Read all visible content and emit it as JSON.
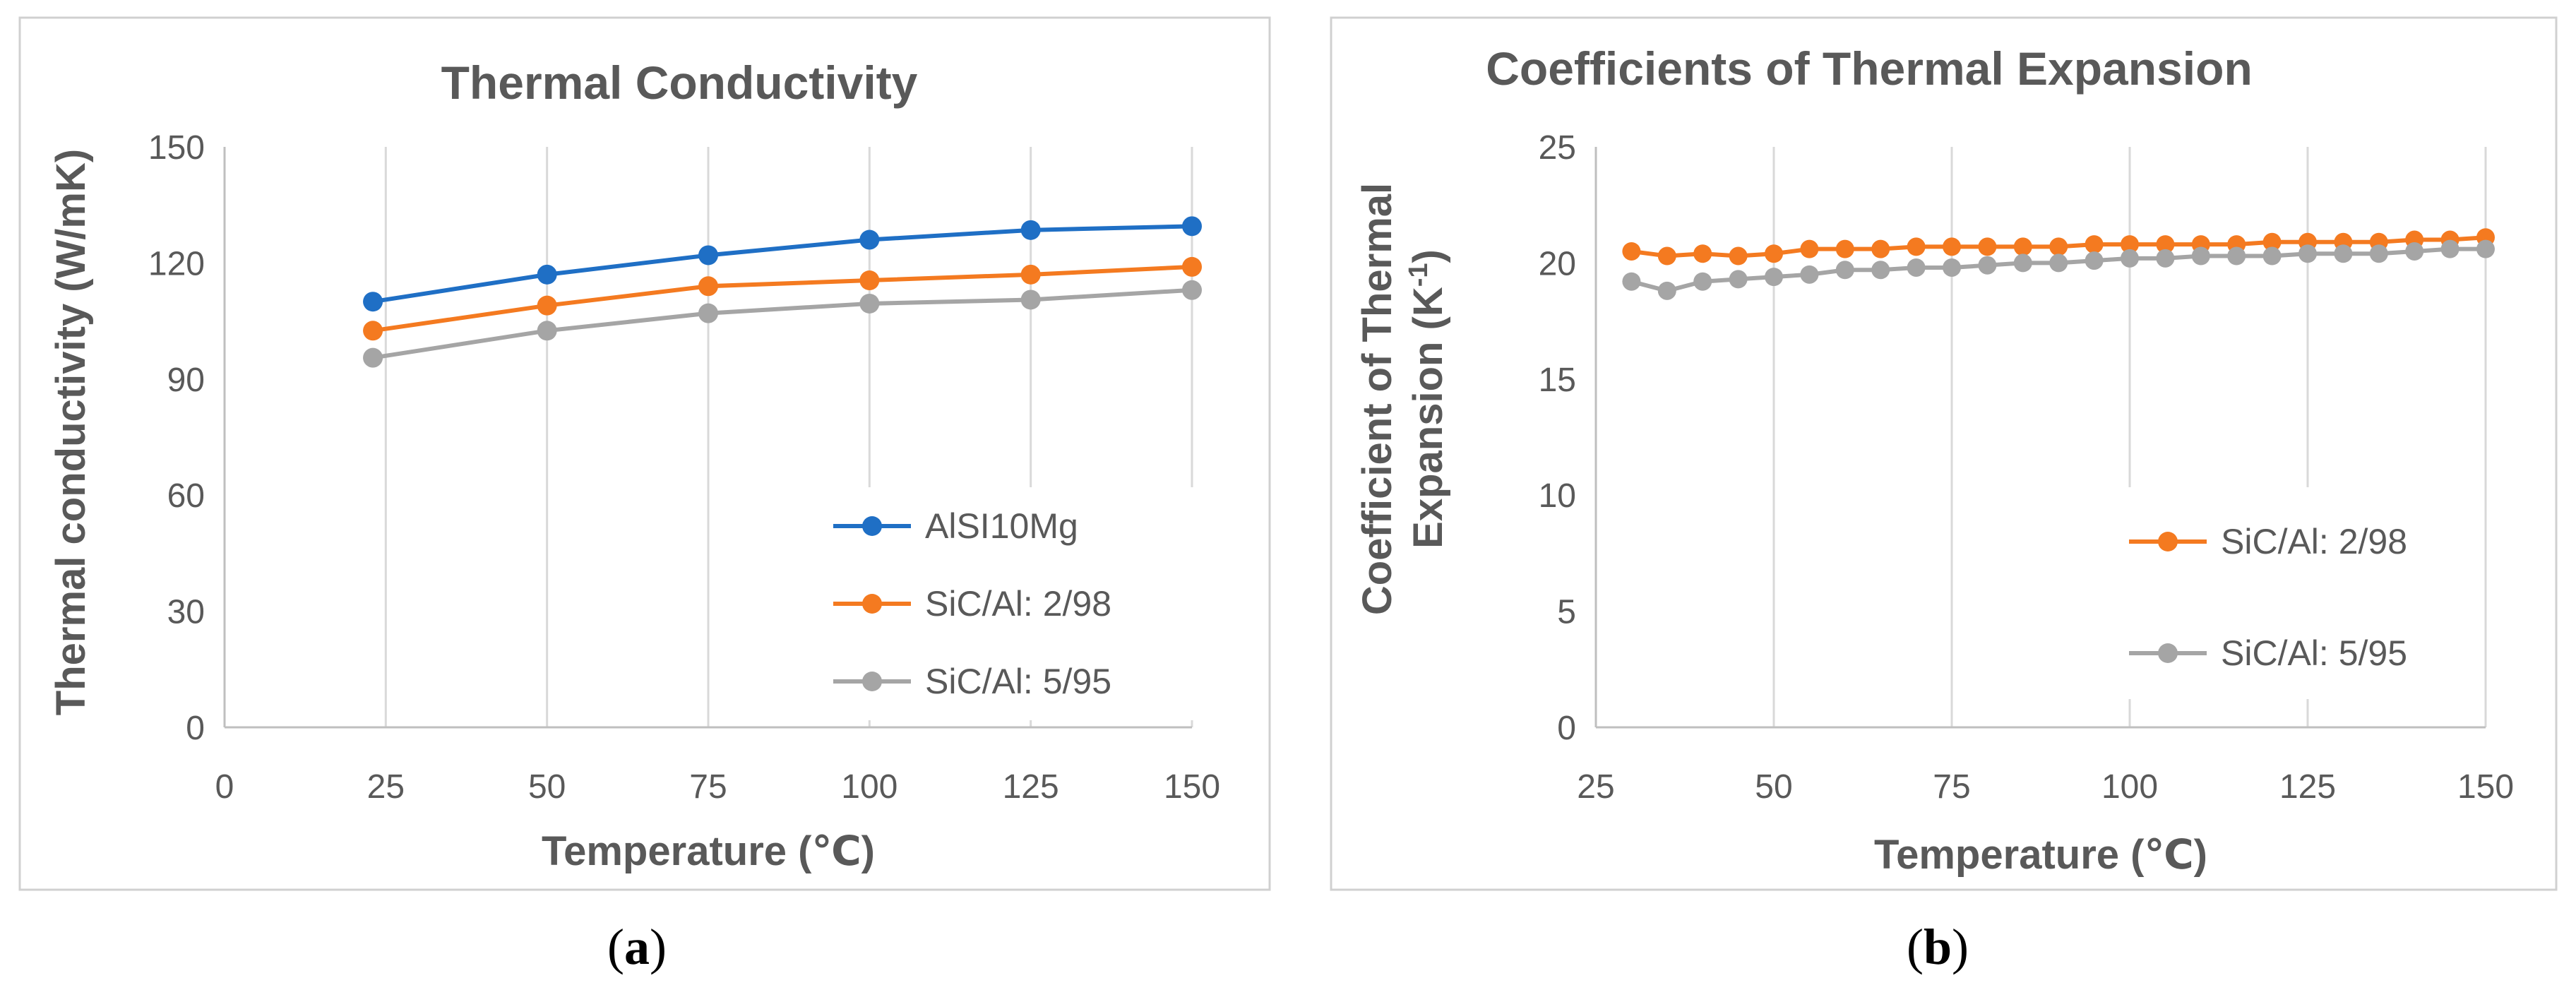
{
  "captions": {
    "a": "a",
    "b": "b"
  },
  "chart_data": [
    {
      "type": "line",
      "title": "Thermal Conductivity",
      "xlabel": "Temperature (℃)",
      "ylabel": "Thermal conductivity (W/mK)",
      "xlim": [
        0,
        150
      ],
      "ylim": [
        0,
        150
      ],
      "xticks": [
        0,
        25,
        50,
        75,
        100,
        125,
        150
      ],
      "yticks": [
        0,
        30,
        60,
        90,
        120,
        150
      ],
      "grid": "vertical",
      "legend": "bottom-right",
      "series": [
        {
          "name": "AlSI10Mg",
          "color": "#1f6fc5",
          "x": [
            23,
            50,
            75,
            100,
            125,
            150
          ],
          "y": [
            110,
            117,
            122,
            126,
            128.5,
            129.5
          ]
        },
        {
          "name": "SiC/Al: 2/98",
          "color": "#f47a20",
          "x": [
            23,
            50,
            75,
            100,
            125,
            150
          ],
          "y": [
            102.5,
            109,
            114,
            115.5,
            117,
            119
          ]
        },
        {
          "name": "SiC/Al: 5/95",
          "color": "#a5a5a5",
          "x": [
            23,
            50,
            75,
            100,
            125,
            150
          ],
          "y": [
            95.5,
            102.5,
            107,
            109.5,
            110.5,
            113
          ]
        }
      ]
    },
    {
      "type": "line",
      "title": "Coefficients of Thermal Expansion",
      "xlabel": "Temperature (℃)",
      "ylabel_lines": [
        "Coefficient of Thermal",
        "Expansion (K"
      ],
      "ylabel_sup": "-1",
      "ylabel_tail": ")",
      "xlim": [
        25,
        150
      ],
      "ylim": [
        0,
        25
      ],
      "xticks": [
        25,
        50,
        75,
        100,
        125,
        150
      ],
      "yticks": [
        0,
        5,
        10,
        15,
        20,
        25
      ],
      "grid": "vertical",
      "legend": "right",
      "series": [
        {
          "name": "SiC/Al: 2/98",
          "color": "#f47a20",
          "x": [
            30,
            35,
            40,
            45,
            50,
            55,
            60,
            65,
            70,
            75,
            80,
            85,
            90,
            95,
            100,
            105,
            110,
            115,
            120,
            125,
            130,
            135,
            140,
            145,
            150
          ],
          "y": [
            20.5,
            20.3,
            20.4,
            20.3,
            20.4,
            20.6,
            20.6,
            20.6,
            20.7,
            20.7,
            20.7,
            20.7,
            20.7,
            20.8,
            20.8,
            20.8,
            20.8,
            20.8,
            20.9,
            20.9,
            20.9,
            20.9,
            21.0,
            21.0,
            21.1
          ]
        },
        {
          "name": "SiC/Al: 5/95",
          "color": "#a5a5a5",
          "x": [
            30,
            35,
            40,
            45,
            50,
            55,
            60,
            65,
            70,
            75,
            80,
            85,
            90,
            95,
            100,
            105,
            110,
            115,
            120,
            125,
            130,
            135,
            140,
            145,
            150
          ],
          "y": [
            19.2,
            18.8,
            19.2,
            19.3,
            19.4,
            19.5,
            19.7,
            19.7,
            19.8,
            19.8,
            19.9,
            20.0,
            20.0,
            20.1,
            20.2,
            20.2,
            20.3,
            20.3,
            20.3,
            20.4,
            20.4,
            20.4,
            20.5,
            20.6,
            20.6
          ]
        }
      ]
    }
  ]
}
